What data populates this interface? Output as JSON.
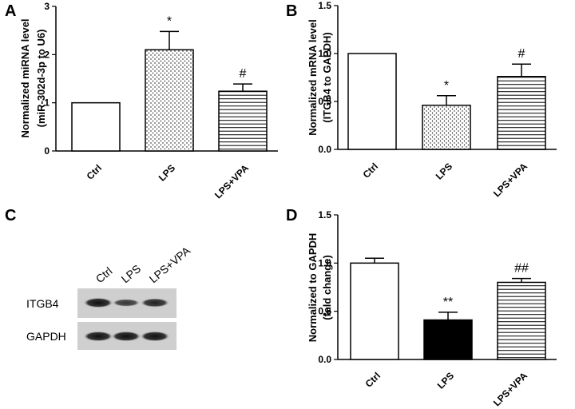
{
  "chart_data": [
    {
      "panel": "A",
      "type": "bar",
      "categories": [
        "Ctrl",
        "LPS",
        "LPS+VPA"
      ],
      "values": [
        1.0,
        2.1,
        1.24
      ],
      "errors": [
        0,
        0.38,
        0.15
      ],
      "annotations": [
        "",
        "*",
        "#"
      ],
      "ylabel_line1": "Normalized miRNA level",
      "ylabel_line2": "(miR-302d-3p to U6)",
      "ylim": [
        0,
        3
      ],
      "ticks": [
        "0",
        "1",
        "2",
        "3"
      ],
      "grid": false,
      "patterns": [
        "white",
        "dots",
        "hlines"
      ]
    },
    {
      "panel": "B",
      "type": "bar",
      "categories": [
        "Ctrl",
        "LPS",
        "LPS+VPA"
      ],
      "values": [
        1.0,
        0.46,
        0.76
      ],
      "errors": [
        0,
        0.1,
        0.13
      ],
      "annotations": [
        "",
        "*",
        "#"
      ],
      "ylabel_line1": "Normalized mRNA level",
      "ylabel_line2": "(ITGB4 to GAPDH)",
      "ylim": [
        0,
        1.5
      ],
      "ticks": [
        "0.0",
        "0.5",
        "1.0",
        "1.5"
      ],
      "grid": false,
      "patterns": [
        "white",
        "dots",
        "hlines"
      ]
    },
    {
      "panel": "D",
      "type": "bar",
      "categories": [
        "Ctrl",
        "LPS",
        "LPS+VPA"
      ],
      "values": [
        1.0,
        0.41,
        0.8
      ],
      "errors": [
        0.05,
        0.08,
        0.04
      ],
      "annotations": [
        "",
        "**",
        "##"
      ],
      "ylabel_line1": "Normalized to GAPDH",
      "ylabel_line2": "(fold change)",
      "ylim": [
        0,
        1.5
      ],
      "ticks": [
        "0.0",
        "0.5",
        "1.0",
        "1.5"
      ],
      "grid": false,
      "patterns": [
        "white",
        "black",
        "hlines"
      ]
    }
  ],
  "blot": {
    "panel": "C",
    "lanes": [
      "Ctrl",
      "LPS",
      "LPS+VPA"
    ],
    "rows": [
      {
        "label": "ITGB4",
        "intensities": [
          1.0,
          0.55,
          0.8
        ]
      },
      {
        "label": "GAPDH",
        "intensities": [
          1.0,
          1.0,
          1.0
        ]
      }
    ]
  },
  "colors": {
    "ink": "#000000",
    "paper": "#ffffff",
    "blot_background": "#cfcfcf",
    "band": "#1a1a1a"
  }
}
